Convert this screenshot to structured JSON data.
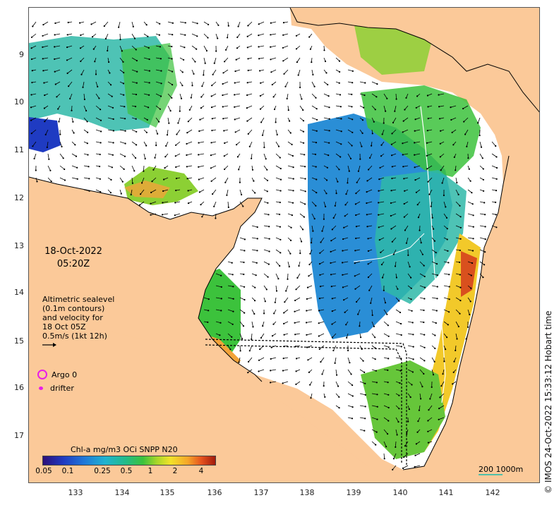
{
  "map": {
    "date": "18-Oct-2022",
    "time": "05:20Z",
    "lat_ticks": [
      "9",
      "10",
      "11",
      "12",
      "13",
      "14",
      "15",
      "16",
      "17"
    ],
    "lon_ticks": [
      "133",
      "134",
      "135",
      "136",
      "137",
      "138",
      "139",
      "140",
      "141",
      "142"
    ],
    "altimetry_lines": [
      "Altimetric sealevel",
      "(0.1m contours)",
      "and velocity for",
      "18 Oct 05Z",
      "0.5m/s (1kt 12h)"
    ],
    "legend": [
      {
        "label": "Argo 0",
        "symbol": "ring",
        "color": "#e81ee8"
      },
      {
        "label": "drifter",
        "symbol": "dot",
        "color": "#e81ee8"
      }
    ],
    "colorbar": {
      "title": "Chl-a mg/m3 OCi SNPP N20",
      "ticks": [
        "0.05",
        "0.1",
        "0.25",
        "0.5",
        "1",
        "2",
        "4"
      ]
    },
    "scale_label": "200  1000m",
    "credit": "© IMOS 24-Oct-2022 15:33:12 Hobart time",
    "colors": {
      "land": "#fbc999",
      "ocean": "#ffffff",
      "arrow": "#000000",
      "contour": "#ffffff"
    }
  }
}
